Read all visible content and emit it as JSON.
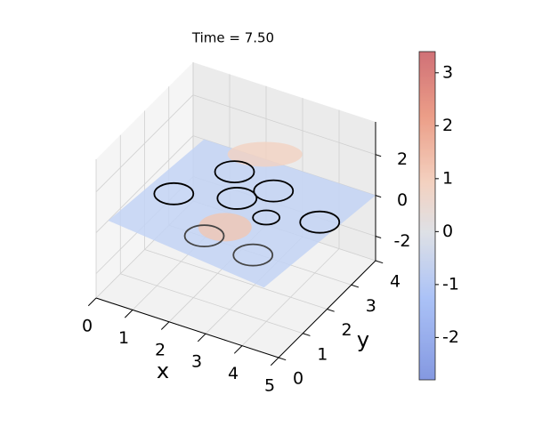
{
  "chart_data": {
    "type": "surface3d",
    "title": "Time = 7.50",
    "xlabel": "x",
    "ylabel": "y",
    "xlim": [
      0,
      5
    ],
    "xticks": [
      0,
      1,
      2,
      3,
      4,
      5
    ],
    "ylim": [
      0,
      4
    ],
    "yticks": [
      0,
      1,
      2,
      3,
      4
    ],
    "zlim": [
      -3.2,
      3.6
    ],
    "zticks": [
      -2,
      0,
      2
    ],
    "grid": true,
    "colorbar": {
      "lim": [
        -2.8,
        3.4
      ],
      "ticks": [
        -2,
        -1,
        0,
        1,
        2,
        3
      ]
    }
  }
}
